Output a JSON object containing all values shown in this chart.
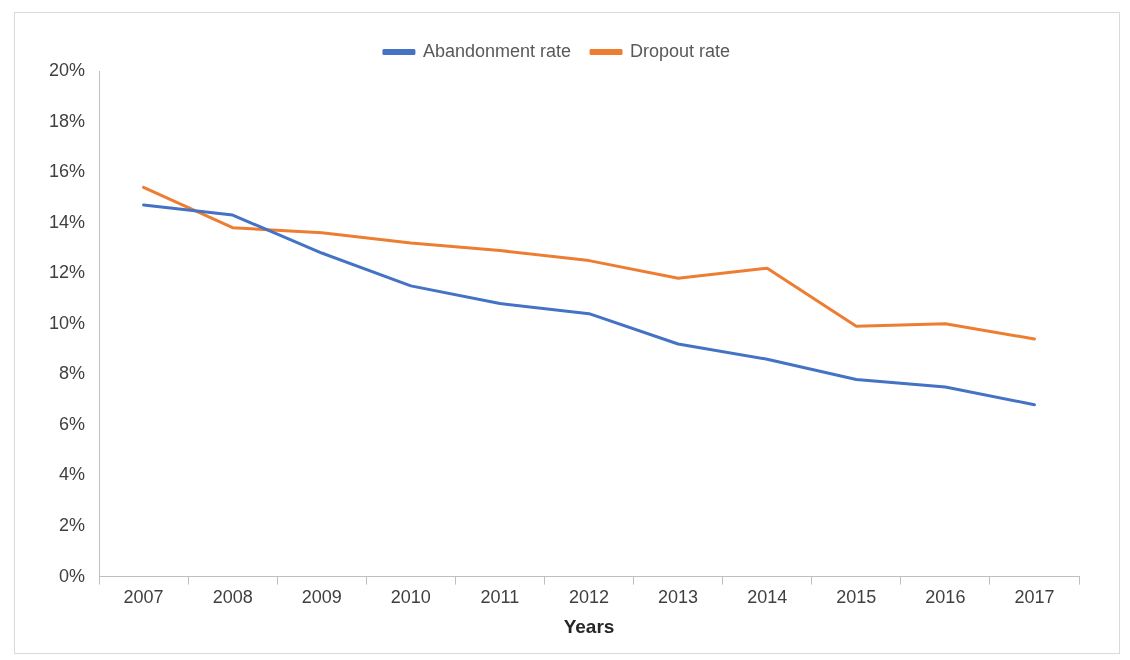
{
  "chart_data": {
    "type": "line",
    "xlabel": "Years",
    "categories": [
      "2007",
      "2008",
      "2009",
      "2010",
      "2011",
      "2012",
      "2013",
      "2014",
      "2015",
      "2016",
      "2017"
    ],
    "series": [
      {
        "name": "Abandonment rate",
        "color": "#4472c4",
        "values": [
          14.7,
          14.3,
          12.8,
          11.5,
          10.8,
          10.4,
          9.2,
          8.6,
          7.8,
          7.5,
          6.8
        ]
      },
      {
        "name": "Dropout rate",
        "color": "#ed7d31",
        "values": [
          15.4,
          13.8,
          13.6,
          13.2,
          12.9,
          12.5,
          11.8,
          12.2,
          9.9,
          10.0,
          9.4
        ]
      }
    ],
    "ylim": [
      0,
      20
    ],
    "yticks": [
      {
        "value": 0,
        "label": "0%"
      },
      {
        "value": 2,
        "label": "2%"
      },
      {
        "value": 4,
        "label": "4%"
      },
      {
        "value": 6,
        "label": "6%"
      },
      {
        "value": 8,
        "label": "8%"
      },
      {
        "value": 10,
        "label": "10%"
      },
      {
        "value": 12,
        "label": "12%"
      },
      {
        "value": 14,
        "label": "14%"
      },
      {
        "value": 16,
        "label": "16%"
      },
      {
        "value": 18,
        "label": "18%"
      },
      {
        "value": 20,
        "label": "20%"
      }
    ],
    "grid": false,
    "legend": "top",
    "marker": "none",
    "line_style": "solid"
  }
}
